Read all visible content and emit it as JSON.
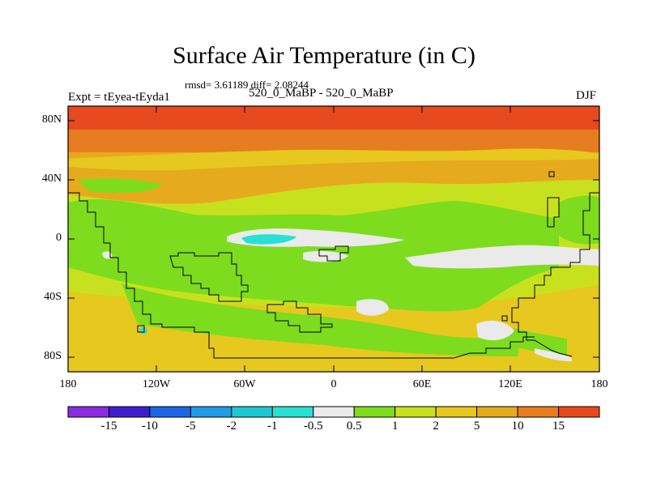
{
  "title": "Surface Air Temperature (in C)",
  "stats": "rmsd= 3.61189 diff= 2.08244",
  "left_label": "Expt = tEyea-tEyda1",
  "center_label": "520_0_MaBP - 520_0_MaBP",
  "season": "DJF",
  "y_ticks": [
    "80N",
    "40N",
    "0",
    "40S",
    "80S"
  ],
  "x_ticks": [
    "180",
    "120W",
    "60W",
    "0",
    "60E",
    "120E",
    "180"
  ],
  "colorbar": {
    "colors": [
      "#8a2be2",
      "#3c1ecc",
      "#1e64e6",
      "#1e9ce6",
      "#1ec8d2",
      "#28e1d2",
      "#eaeaea",
      "#7ddc1e",
      "#c8e11e",
      "#e6c81e",
      "#e6aa1e",
      "#e67d1e",
      "#e64a1e"
    ],
    "labels": [
      "-15",
      "-10",
      "-5",
      "-2",
      "-1",
      "-0.5",
      "0.5",
      "1",
      "2",
      "5",
      "10",
      "15"
    ]
  },
  "chart_data": {
    "type": "heatmap",
    "title": "Surface Air Temperature (in C)",
    "variable": "Surface Air Temperature",
    "units": "C",
    "season": "DJF",
    "xlim": [
      -180,
      180
    ],
    "ylim": [
      -90,
      90
    ],
    "levels": [
      -15,
      -10,
      -5,
      -2,
      -1,
      -0.5,
      0.5,
      1,
      2,
      5,
      10,
      15
    ],
    "approx_zonal_pattern": [
      {
        "lat_range": [
          70,
          90
        ],
        "value_class": "> 15"
      },
      {
        "lat_range": [
          55,
          70
        ],
        "value_class": "10 to 15"
      },
      {
        "lat_range": [
          35,
          55
        ],
        "value_class": "5 to 10"
      },
      {
        "lat_range": [
          -40,
          35
        ],
        "value_class": "1 to 5"
      },
      {
        "lat_range": [
          -90,
          -40
        ],
        "value_class": "2 to 10"
      }
    ],
    "notable_features": [
      {
        "name": "negative anomaly near equator",
        "lon": -40,
        "lat": 0,
        "value_class": "-1 to -0.5"
      },
      {
        "name": "near-zero band south tropics",
        "lon": 110,
        "lat": -15,
        "value_class": "-0.5 to 0.5"
      }
    ]
  }
}
